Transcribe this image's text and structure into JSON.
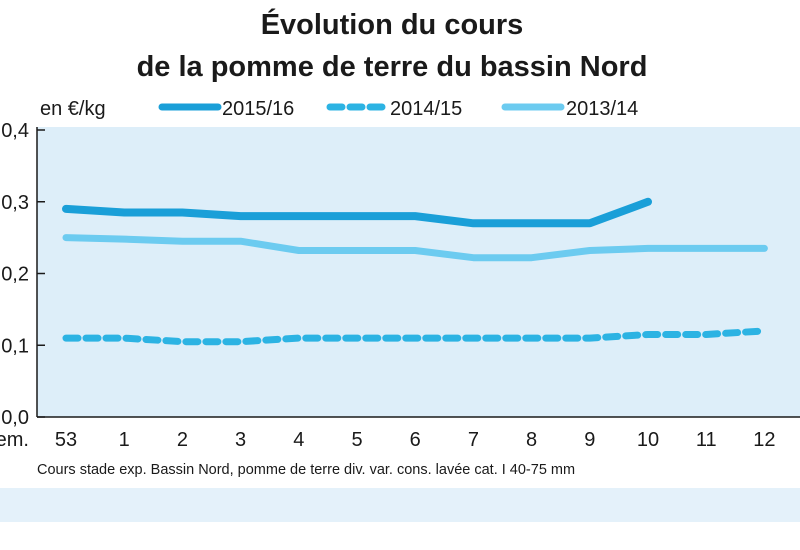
{
  "chart_data": {
    "type": "line",
    "title_line1": "Évolution du cours",
    "title_line2": "de la pomme de terre du bassin Nord",
    "unit_label": "en €/kg",
    "x_axis_label": "Sem.",
    "categories": [
      "53",
      "1",
      "2",
      "3",
      "4",
      "5",
      "6",
      "7",
      "8",
      "9",
      "10",
      "11",
      "12"
    ],
    "y_ticks": [
      "0,0",
      "0,1",
      "0,2",
      "0,3",
      "0,4"
    ],
    "ylim": [
      0,
      0.4
    ],
    "grid": false,
    "legend_position": "top",
    "series": [
      {
        "name": "2015/16",
        "style": "solid-thick",
        "color": "#1a9fd8",
        "values": [
          0.29,
          0.285,
          0.285,
          0.28,
          0.28,
          0.28,
          0.28,
          0.27,
          0.27,
          0.27,
          0.3,
          null,
          null
        ]
      },
      {
        "name": "2014/15",
        "style": "dashed",
        "color": "#2cb3e3",
        "values": [
          0.11,
          0.11,
          0.105,
          0.105,
          0.11,
          0.11,
          0.11,
          0.11,
          0.11,
          0.11,
          0.115,
          0.115,
          0.12
        ]
      },
      {
        "name": "2013/14",
        "style": "solid-light",
        "color": "#6ccbf0",
        "values": [
          0.25,
          0.248,
          0.245,
          0.245,
          0.232,
          0.232,
          0.232,
          0.222,
          0.222,
          0.232,
          0.235,
          0.235,
          0.235
        ]
      }
    ],
    "source_note": "Cours stade exp. Bassin Nord, pomme de terre div. var. cons. lavée cat. I 40-75 mm"
  },
  "colors": {
    "plot_background": "#ddeef9",
    "axis": "#1a1a1a",
    "footer_band": "#e4f1fa"
  }
}
